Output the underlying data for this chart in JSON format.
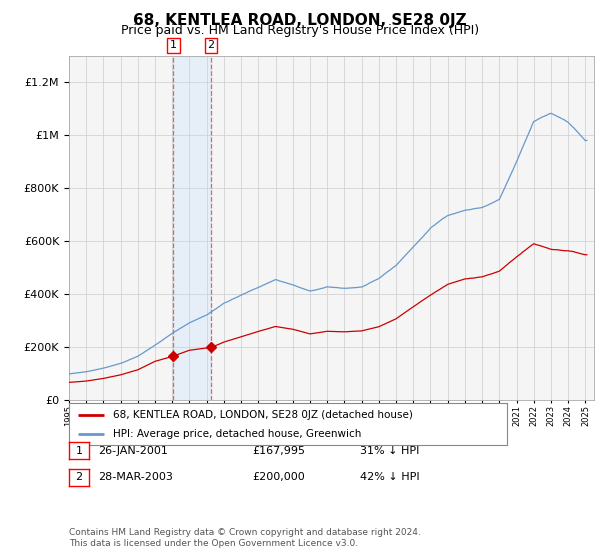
{
  "title": "68, KENTLEA ROAD, LONDON, SE28 0JZ",
  "subtitle": "Price paid vs. HM Land Registry's House Price Index (HPI)",
  "title_fontsize": 11,
  "subtitle_fontsize": 9,
  "legend_label_red": "68, KENTLEA ROAD, LONDON, SE28 0JZ (detached house)",
  "legend_label_blue": "HPI: Average price, detached house, Greenwich",
  "footnote": "Contains HM Land Registry data © Crown copyright and database right 2024.\nThis data is licensed under the Open Government Licence v3.0.",
  "transactions": [
    {
      "num": 1,
      "date": "26-JAN-2001",
      "price": "£167,995",
      "hpi": "31% ↓ HPI",
      "year": 2001.07
    },
    {
      "num": 2,
      "date": "28-MAR-2003",
      "price": "£200,000",
      "hpi": "42% ↓ HPI",
      "year": 2003.25
    }
  ],
  "red_color": "#cc0000",
  "blue_color": "#6699cc",
  "shade_color": "#ddeeff",
  "grid_color": "#cccccc",
  "background_color": "#f5f5f5",
  "plot_bg_color": "#f5f5f5",
  "ylim": [
    0,
    1300000
  ],
  "xlim": [
    1995.0,
    2025.5
  ]
}
